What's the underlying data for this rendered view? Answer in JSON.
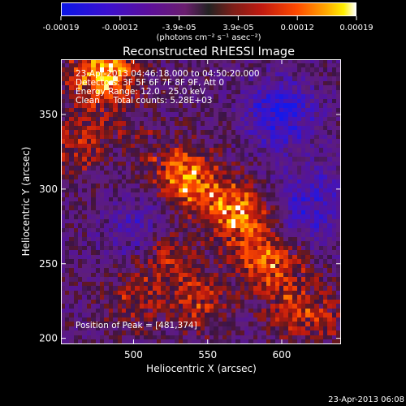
{
  "chart_data": {
    "type": "heatmap",
    "title": "Reconstructed RHESSI Image",
    "xlabel": "Heliocentric X (arcsec)",
    "ylabel": "Heliocentric Y (arcsec)",
    "xlim": [
      451,
      640
    ],
    "ylim": [
      196,
      387
    ],
    "xticks": [
      500,
      550,
      600
    ],
    "yticks": [
      200,
      250,
      300,
      350
    ],
    "colorbar": {
      "unit_label": "(photons cm⁻² s⁻¹ asec⁻²)",
      "ticks": [
        "-0.00019",
        "-0.00012",
        "-3.9e-05",
        "3.9e-05",
        "0.00012",
        "0.00019"
      ],
      "range": [
        -0.00019,
        0.00019
      ]
    },
    "annotations": [
      "23-Apr-2013 04:46:18.000 to 04:50:20.000",
      "Detectors: 3F 5F 6F 7F 8F 9F, Att 0",
      "Energy Range: 12.0 - 25.0 keV",
      "Clean     Total counts: 5.28E+03"
    ],
    "peak_label": "Position of Peak = [481,374]",
    "peak_position": [
      481,
      374
    ],
    "bright_sources": [
      {
        "x": 483,
        "y": 378,
        "value": 0.00019
      },
      {
        "x": 570,
        "y": 285,
        "value": 0.00017
      },
      {
        "x": 537,
        "y": 308,
        "value": 0.00015
      },
      {
        "x": 520,
        "y": 255,
        "value": 0.00012
      },
      {
        "x": 590,
        "y": 250,
        "value": 0.00011
      },
      {
        "x": 460,
        "y": 330,
        "value": 0.0001
      },
      {
        "x": 545,
        "y": 225,
        "value": 0.0001
      },
      {
        "x": 610,
        "y": 215,
        "value": 9e-05
      },
      {
        "x": 500,
        "y": 225,
        "value": 8e-05
      }
    ],
    "negative_regions": [
      {
        "x": 600,
        "y": 350,
        "value": -0.00016
      },
      {
        "x": 620,
        "y": 290,
        "value": -0.00013
      },
      {
        "x": 505,
        "y": 270,
        "value": -0.0001
      }
    ]
  },
  "timestamp": "23-Apr-2013 06:08",
  "colors": {
    "background": "#000000",
    "text": "#ffffff"
  }
}
